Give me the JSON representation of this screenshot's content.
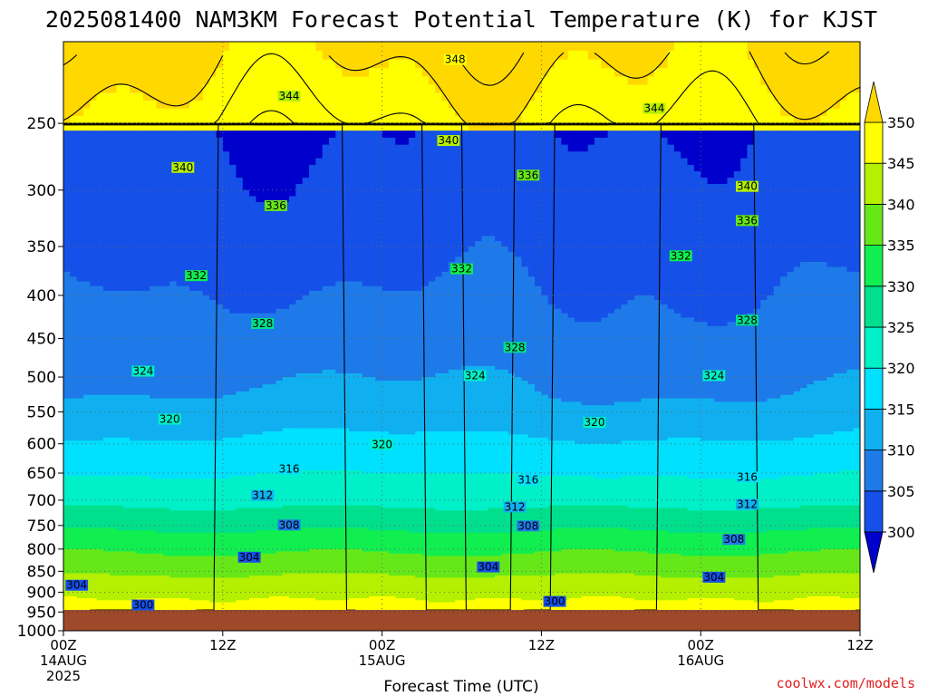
{
  "chart_data": {
    "type": "heatmap",
    "title": "2025081400 NAM3KM Forecast Potential Temperature (K) for KJST",
    "xlabel": "Forecast Time (UTC)",
    "ylabel": "",
    "x_ticks": [
      {
        "hour": 0,
        "lines": [
          "00Z",
          "14AUG",
          "2025"
        ]
      },
      {
        "hour": 12,
        "lines": [
          "12Z"
        ]
      },
      {
        "hour": 24,
        "lines": [
          "00Z",
          "15AUG"
        ]
      },
      {
        "hour": 36,
        "lines": [
          "12Z"
        ]
      },
      {
        "hour": 48,
        "lines": [
          "00Z",
          "16AUG"
        ]
      },
      {
        "hour": 60,
        "lines": [
          "12Z"
        ]
      }
    ],
    "x_range_hours": [
      0,
      60
    ],
    "y_scale": "pressure (top 200, bottom 1000)",
    "y_ticks": [
      250,
      300,
      350,
      400,
      450,
      500,
      550,
      600,
      650,
      700,
      750,
      800,
      850,
      900,
      950,
      1000
    ],
    "y_range_hPa": [
      200,
      1000
    ],
    "surface_pressure_hPa": 945,
    "surface_color": "#9e4a2a",
    "grid": true,
    "colorbar": {
      "levels": [
        300,
        305,
        310,
        315,
        320,
        325,
        330,
        335,
        340,
        345,
        350
      ],
      "labels": [
        "300",
        "305",
        "310",
        "315",
        "320",
        "325",
        "330",
        "335",
        "340",
        "345",
        "350"
      ],
      "colors": [
        "#0a2ce6",
        "#1550e8",
        "#1e7ae8",
        "#10b0f0",
        "#00e0ff",
        "#00f0c8",
        "#00e08c",
        "#10ee50",
        "#66e818",
        "#b4f000",
        "#ffff00"
      ],
      "under_color": "#0000cc",
      "over_color": "#ffd800"
    },
    "contour_interval_K": 2,
    "contour_labels": [
      {
        "value": 348,
        "hour": 29.5,
        "p": 210
      },
      {
        "value": 344,
        "hour": 17,
        "p": 232
      },
      {
        "value": 344,
        "hour": 44.5,
        "p": 240
      },
      {
        "value": 340,
        "hour": 9,
        "p": 282
      },
      {
        "value": 340,
        "hour": 29,
        "p": 262
      },
      {
        "value": 340,
        "hour": 51.5,
        "p": 297
      },
      {
        "value": 336,
        "hour": 16,
        "p": 313
      },
      {
        "value": 336,
        "hour": 35,
        "p": 288
      },
      {
        "value": 336,
        "hour": 51.5,
        "p": 326
      },
      {
        "value": 332,
        "hour": 10,
        "p": 379
      },
      {
        "value": 332,
        "hour": 30,
        "p": 372
      },
      {
        "value": 332,
        "hour": 46.5,
        "p": 359
      },
      {
        "value": 328,
        "hour": 15,
        "p": 432
      },
      {
        "value": 328,
        "hour": 34,
        "p": 461
      },
      {
        "value": 328,
        "hour": 51.5,
        "p": 428
      },
      {
        "value": 324,
        "hour": 6,
        "p": 492
      },
      {
        "value": 324,
        "hour": 31,
        "p": 498
      },
      {
        "value": 324,
        "hour": 49,
        "p": 498
      },
      {
        "value": 320,
        "hour": 8,
        "p": 561
      },
      {
        "value": 320,
        "hour": 24,
        "p": 601
      },
      {
        "value": 320,
        "hour": 40,
        "p": 566
      },
      {
        "value": 316,
        "hour": 17,
        "p": 643
      },
      {
        "value": 316,
        "hour": 35,
        "p": 662
      },
      {
        "value": 316,
        "hour": 51.5,
        "p": 657
      },
      {
        "value": 312,
        "hour": 15,
        "p": 691
      },
      {
        "value": 312,
        "hour": 34,
        "p": 713
      },
      {
        "value": 312,
        "hour": 51.5,
        "p": 708
      },
      {
        "value": 308,
        "hour": 17,
        "p": 749
      },
      {
        "value": 308,
        "hour": 35,
        "p": 751
      },
      {
        "value": 308,
        "hour": 50.5,
        "p": 779
      },
      {
        "value": 304,
        "hour": 1,
        "p": 883
      },
      {
        "value": 304,
        "hour": 14,
        "p": 818
      },
      {
        "value": 304,
        "hour": 32,
        "p": 840
      },
      {
        "value": 304,
        "hour": 49,
        "p": 864
      },
      {
        "value": 300,
        "hour": 6,
        "p": 932
      },
      {
        "value": 300,
        "hour": 37,
        "p": 923
      }
    ]
  },
  "credit": "coolwx.com/models",
  "colors": {
    "credit_red": "#e02020",
    "grid": "#666666"
  }
}
